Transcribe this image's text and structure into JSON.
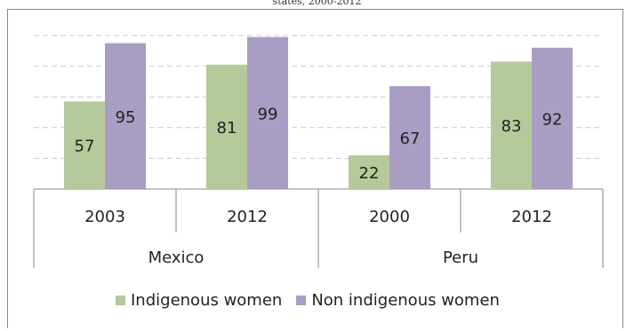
{
  "chart_data": {
    "type": "bar",
    "title": "states, 2000-2012",
    "groups": [
      {
        "label": "Mexico",
        "categories": [
          "2003",
          "2012"
        ]
      },
      {
        "label": "Peru",
        "categories": [
          "2000",
          "2012"
        ]
      }
    ],
    "categories": [
      "2003",
      "2012",
      "2000",
      "2012"
    ],
    "series": [
      {
        "name": "Indigenous women",
        "color": "#b5c99a",
        "values": [
          57,
          81,
          22,
          83
        ]
      },
      {
        "name": "Non indigenous women",
        "color": "#a99dc3",
        "values": [
          95,
          99,
          67,
          92
        ]
      }
    ],
    "ylim": [
      0,
      100
    ],
    "grid": true,
    "gridline_style": "dashed",
    "legend_position": "bottom"
  }
}
